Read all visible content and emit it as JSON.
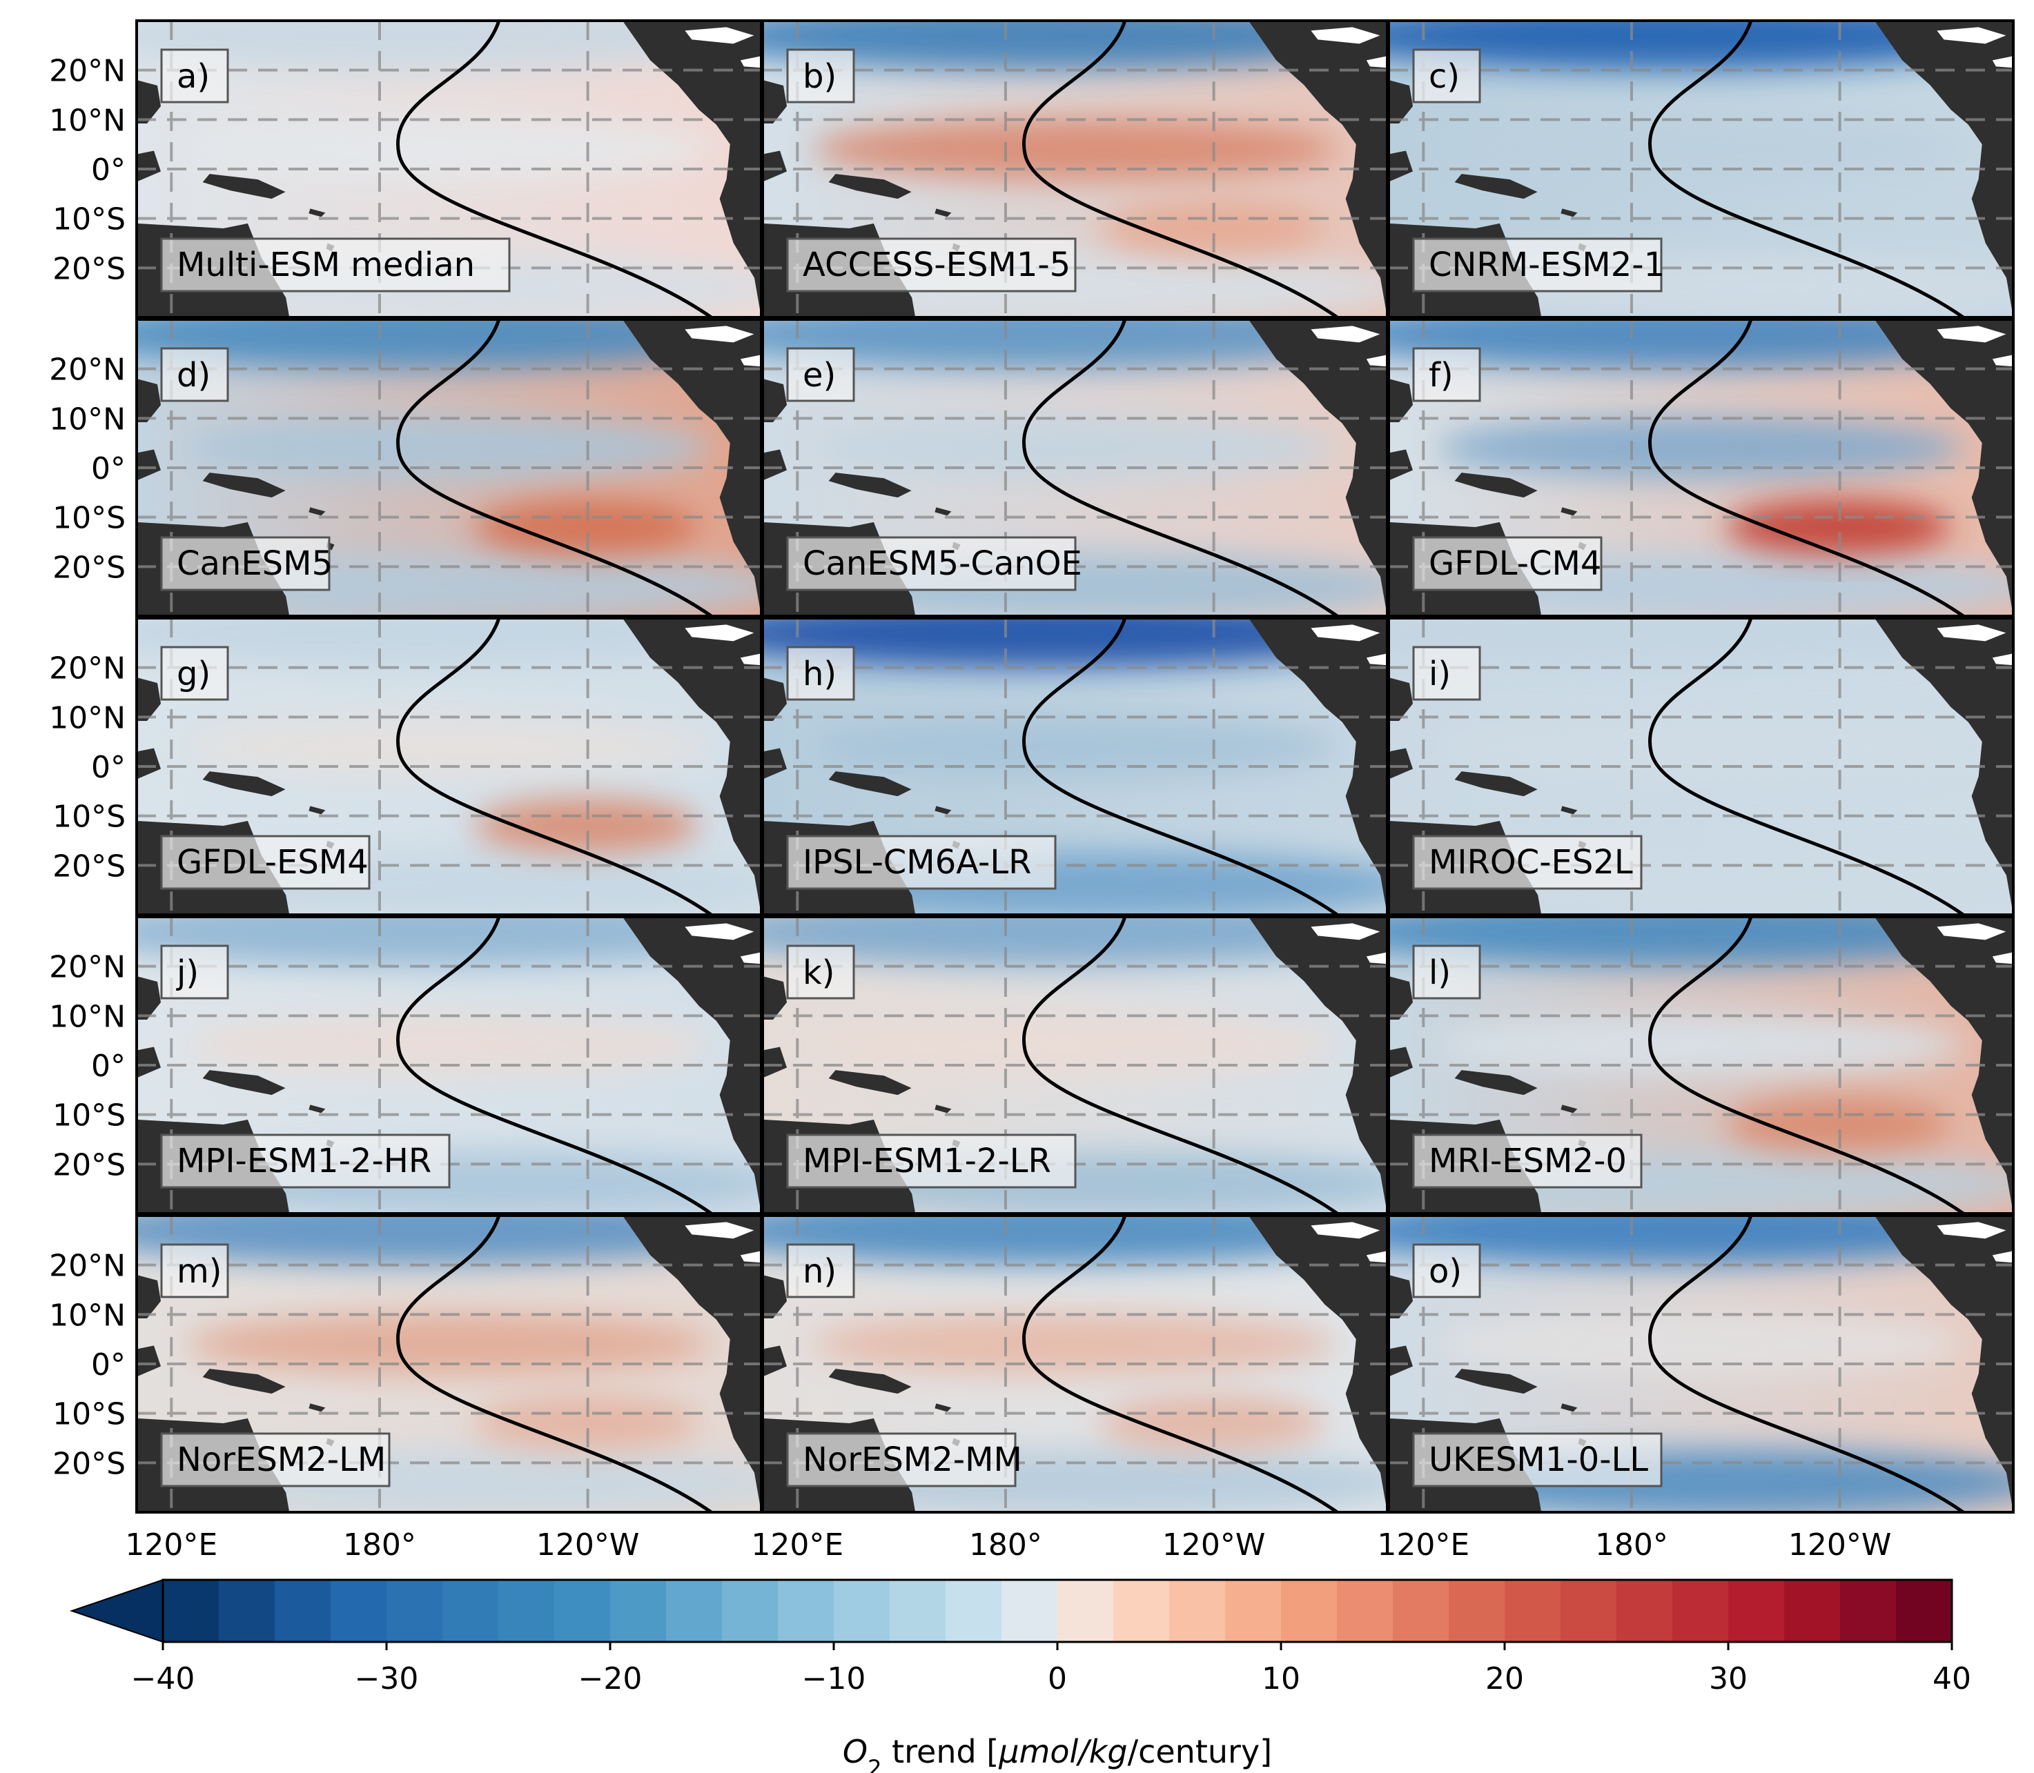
{
  "chart_data": {
    "type": "heatmap",
    "description_units": "O2 trend",
    "panels": [
      {
        "letter": "a)",
        "model": "Multi-ESM median",
        "pattern": "weak",
        "west_color": "#dfe5ea",
        "east_color": "#f1d8d2",
        "north_band": "#c9d8e3",
        "south_band": "#d4dfe7",
        "eq_band": "#e5e9ec",
        "accent": null
      },
      {
        "letter": "b)",
        "model": "ACCESS-ESM1-5",
        "pattern": "red-equator",
        "west_color": "#d3e0e9",
        "east_color": "#e9c3b6",
        "north_band": "#3e7fb8",
        "south_band": "#d7e1e8",
        "eq_band": "#d9866c",
        "accent": "#e6a78f"
      },
      {
        "letter": "c)",
        "model": "CNRM-ESM2-1",
        "pattern": "blue-north",
        "west_color": "#b9cfdd",
        "east_color": "#c6d7e2",
        "north_band": "#1f5fb0",
        "south_band": "#d2dde6",
        "eq_band": "#bcd0de",
        "accent": null
      },
      {
        "letter": "d)",
        "model": "CanESM5",
        "pattern": "red-east",
        "west_color": "#c2d4e1",
        "east_color": "#e3a28a",
        "north_band": "#4a8bc0",
        "south_band": "#b2cadb",
        "eq_band": "#a9c6da",
        "accent": "#d46c4c"
      },
      {
        "letter": "e)",
        "model": "CanESM5-CanOE",
        "pattern": "blue-mix",
        "west_color": "#cfdce6",
        "east_color": "#e8cdc4",
        "north_band": "#5d95c4",
        "south_band": "#9fbfd6",
        "eq_band": "#c3d5e2",
        "accent": null
      },
      {
        "letter": "f)",
        "model": "GFDL-CM4",
        "pattern": "banded",
        "west_color": "#d4e0e8",
        "east_color": "#e9b9a8",
        "north_band": "#4786bf",
        "south_band": "#b5cde0",
        "eq_band": "#7fa9cd",
        "accent": "#c0392b"
      },
      {
        "letter": "g)",
        "model": "GFDL-ESM4",
        "pattern": "weak-red-north",
        "west_color": "#d9e3ea",
        "east_color": "#d2dfe8",
        "north_band": "#c4d6e3",
        "south_band": "#c6d7e3",
        "eq_band": "#e7e1de",
        "accent": "#d9876a"
      },
      {
        "letter": "h)",
        "model": "IPSL-CM6A-LR",
        "pattern": "blue-strong",
        "west_color": "#b6cddd",
        "east_color": "#c6d7e3",
        "north_band": "#1a4fa8",
        "south_band": "#6ea2cc",
        "eq_band": "#a6c3d8",
        "accent": null
      },
      {
        "letter": "i)",
        "model": "MIROC-ES2L",
        "pattern": "uniform",
        "west_color": "#cad9e4",
        "east_color": "#cedce6",
        "north_band": "#c4d5e2",
        "south_band": "#cddbe5",
        "eq_band": "#d0dde6",
        "accent": null
      },
      {
        "letter": "j)",
        "model": "MPI-ESM1-2-HR",
        "pattern": "weak",
        "west_color": "#dee5ea",
        "east_color": "#d3dfe8",
        "north_band": "#8fb5d3",
        "south_band": "#a8c5da",
        "eq_band": "#ebdcd6",
        "accent": null
      },
      {
        "letter": "k)",
        "model": "MPI-ESM1-2-LR",
        "pattern": "weak",
        "west_color": "#e6dcd7",
        "east_color": "#d5e0e8",
        "north_band": "#7da9cd",
        "south_band": "#9fbfd6",
        "eq_band": "#ecdcd5",
        "accent": null
      },
      {
        "letter": "l)",
        "model": "MRI-ESM2-0",
        "pattern": "red-east",
        "west_color": "#c7d8e3",
        "east_color": "#e6b4a2",
        "north_band": "#4a8bc0",
        "south_band": "#b9cfdd",
        "eq_band": "#d9e3ea",
        "accent": "#d9876a"
      },
      {
        "letter": "m)",
        "model": "NorESM2-LM",
        "pattern": "red-bands",
        "west_color": "#e3dfdd",
        "east_color": "#e5d8d2",
        "north_band": "#5b93c4",
        "south_band": "#c6d7e3",
        "eq_band": "#e2a892",
        "accent": "#e4b19e"
      },
      {
        "letter": "n)",
        "model": "NorESM2-MM",
        "pattern": "red-bands",
        "west_color": "#e3dfdd",
        "east_color": "#e0e5e9",
        "north_band": "#4c8bc1",
        "south_band": "#b3cbdc",
        "eq_band": "#e6b7a5",
        "accent": "#e4b19e"
      },
      {
        "letter": "o)",
        "model": "UKESM1-0-LL",
        "pattern": "red-east-blue-south",
        "west_color": "#cfdce6",
        "east_color": "#e8cbc0",
        "north_band": "#3a7fbf",
        "south_band": "#4c8bc1",
        "eq_band": "#e3e2e2",
        "accent": null
      }
    ],
    "y_ticks": [
      "20°N",
      "10°N",
      "0°",
      "10°S",
      "20°S"
    ],
    "x_ticks": [
      "120°E",
      "180°",
      "120°W"
    ],
    "colorbar": {
      "min": -40,
      "max": 40,
      "step": 2.5,
      "ticks": [
        "−40",
        "−30",
        "−20",
        "−10",
        "0",
        "10",
        "20",
        "30",
        "40"
      ],
      "tick_values": [
        -40,
        -30,
        -20,
        -10,
        0,
        10,
        20,
        30,
        40
      ],
      "extend": "min",
      "label": "O2 trend [μmol/kg/century]",
      "label_var": "O",
      "label_sub": "2",
      "label_rest": " trend [",
      "label_unit": "μmol/kg",
      "label_end": "/century]",
      "colormap": "RdBu_r"
    },
    "grid": true,
    "grid_style": "dashed gray"
  }
}
